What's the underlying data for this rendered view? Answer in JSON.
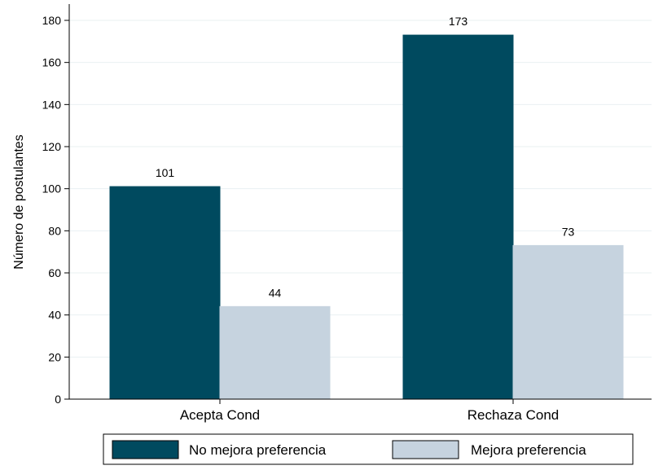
{
  "chart_data": {
    "type": "bar",
    "title": "",
    "xlabel": "",
    "ylabel": "Número de postulantes",
    "ylim": [
      0,
      180
    ],
    "yticks": [
      0,
      20,
      40,
      60,
      80,
      100,
      120,
      140,
      160,
      180
    ],
    "grid": true,
    "legend_position": "bottom",
    "categories": [
      "Acepta Cond",
      "Rechaza Cond"
    ],
    "series": [
      {
        "name": "No mejora preferencia",
        "values": [
          101,
          173
        ],
        "color": "#004a5f"
      },
      {
        "name": "Mejora preferencia",
        "values": [
          44,
          73
        ],
        "color": "#c6d3df"
      }
    ]
  }
}
